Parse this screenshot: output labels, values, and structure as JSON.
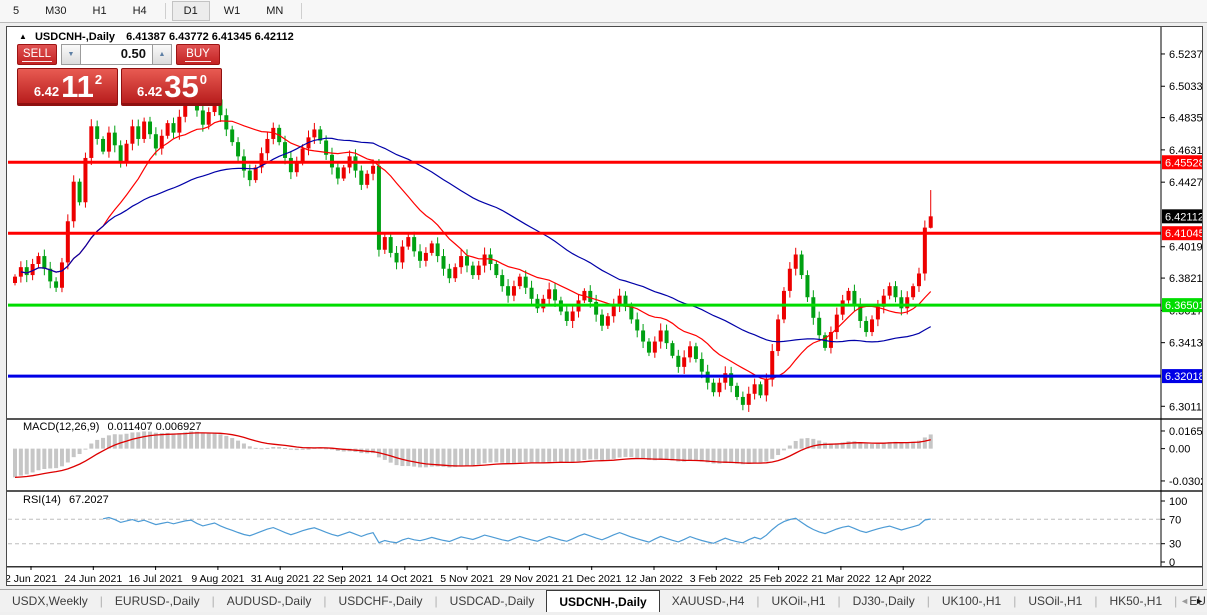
{
  "toolbar": {
    "timeframes": [
      {
        "label": "5",
        "active": false
      },
      {
        "label": "M30",
        "active": false
      },
      {
        "label": "H1",
        "active": false
      },
      {
        "label": "H4",
        "active": false
      },
      {
        "label": "|",
        "active": false
      },
      {
        "label": "D1",
        "active": true
      },
      {
        "label": "W1",
        "active": false
      },
      {
        "label": "MN",
        "active": false
      },
      {
        "label": "|",
        "active": false
      }
    ]
  },
  "chart": {
    "title_symbol": "USDCNH-,Daily",
    "title_ohlc": "6.41387 6.43772 6.41345 6.42112",
    "one_click": {
      "sell_label": "SELL",
      "buy_label": "BUY",
      "lot_value": "0.50",
      "spin_down": "▼",
      "spin_up": "▲",
      "sell_price_small": "6.42",
      "sell_price_big": "11",
      "sell_price_sup": "2",
      "buy_price_small": "6.42",
      "buy_price_big": "35",
      "buy_price_sup": "0"
    }
  },
  "indicators": {
    "macd_label": "MACD(12,26,9)",
    "macd_values": "0.011407 0.006927",
    "rsi_label": "RSI(14)",
    "rsi_value": "67.2027"
  },
  "chart_data": {
    "type": "candlestick",
    "symbol": "USDCNH-,Daily",
    "title": "USDCNH-,Daily 6.41387 6.43772 6.41345 6.42112",
    "last_candle": {
      "open": 6.41387,
      "high": 6.43772,
      "low": 6.41345,
      "close": 6.42112
    },
    "closes": [
      6.383,
      6.389,
      6.384,
      6.391,
      6.396,
      6.388,
      6.38,
      6.376,
      6.392,
      6.418,
      6.443,
      6.43,
      6.458,
      6.478,
      6.47,
      6.462,
      6.474,
      6.466,
      6.455,
      6.467,
      6.478,
      6.47,
      6.481,
      6.473,
      6.464,
      6.472,
      6.48,
      6.474,
      6.484,
      6.493,
      6.499,
      6.488,
      6.479,
      6.487,
      6.495,
      6.485,
      6.476,
      6.468,
      6.459,
      6.45,
      6.444,
      6.452,
      6.461,
      6.47,
      6.477,
      6.468,
      6.458,
      6.449,
      6.456,
      6.464,
      6.471,
      6.476,
      6.469,
      6.46,
      6.452,
      6.445,
      6.452,
      6.459,
      6.45,
      6.441,
      6.448,
      6.453,
      6.4,
      6.408,
      6.398,
      6.392,
      6.402,
      6.408,
      6.399,
      6.393,
      6.398,
      6.404,
      6.396,
      6.388,
      6.382,
      6.389,
      6.396,
      6.39,
      6.384,
      6.39,
      6.397,
      6.391,
      6.384,
      6.377,
      6.371,
      6.377,
      6.383,
      6.376,
      6.369,
      6.363,
      6.369,
      6.375,
      6.368,
      6.361,
      6.355,
      6.361,
      6.368,
      6.374,
      6.367,
      6.359,
      6.352,
      6.358,
      6.365,
      6.371,
      6.364,
      6.356,
      6.349,
      6.342,
      6.335,
      6.342,
      6.349,
      6.341,
      6.333,
      6.326,
      6.332,
      6.339,
      6.331,
      6.323,
      6.316,
      6.31,
      6.316,
      6.322,
      6.314,
      6.307,
      6.302,
      6.309,
      6.315,
      6.308,
      6.318,
      6.336,
      6.356,
      6.374,
      6.388,
      6.397,
      6.384,
      6.37,
      6.357,
      6.346,
      6.338,
      6.348,
      6.359,
      6.368,
      6.374,
      6.365,
      6.355,
      6.348,
      6.356,
      6.364,
      6.371,
      6.377,
      6.37,
      6.363,
      6.37,
      6.377,
      6.385,
      6.414,
      6.42112
    ],
    "price_axis": {
      "min": 6.2937,
      "max": 6.5401,
      "ticks": [
        "6.52370",
        "6.50330",
        "6.48350",
        "6.46310",
        "6.44270",
        "6.40190",
        "6.38210",
        "6.36170",
        "6.34130",
        "6.30110"
      ]
    },
    "hlines": [
      {
        "price": 6.45528,
        "label": "6.45528",
        "color": "#ff0000",
        "width": 3
      },
      {
        "price": 6.41045,
        "label": "6.41045",
        "color": "#ff0000",
        "width": 3
      },
      {
        "price": 6.36501,
        "label": "6.36501",
        "color": "#00dd00",
        "width": 3
      },
      {
        "price": 6.32018,
        "label": "6.32018",
        "color": "#0000e6",
        "width": 3
      }
    ],
    "current_price": {
      "price": 6.42112,
      "label": "6.42112",
      "badge_color": "#000000"
    },
    "macd": {
      "params": "12,26,9",
      "main": 0.011407,
      "signal": 0.006927,
      "axis_ticks": [
        {
          "label": "0.01653",
          "value": 0.01653
        },
        {
          "label": "0.00",
          "value": 0.0
        },
        {
          "label": "-0.03023",
          "value": -0.03023
        }
      ],
      "range": [
        -0.0387,
        0.0268
      ]
    },
    "rsi": {
      "period": 14,
      "value": 67.2027,
      "levels": [
        70,
        30
      ],
      "axis_ticks": [
        {
          "label": "100",
          "value": 100
        },
        {
          "label": "70",
          "value": 70
        },
        {
          "label": "30",
          "value": 30
        },
        {
          "label": "0",
          "value": 0
        }
      ]
    },
    "x_labels": [
      "2 Jun 2021",
      "24 Jun 2021",
      "16 Jul 2021",
      "9 Aug 2021",
      "31 Aug 2021",
      "22 Sep 2021",
      "14 Oct 2021",
      "5 Nov 2021",
      "29 Nov 2021",
      "21 Dec 2021",
      "12 Jan 2022",
      "3 Feb 2022",
      "25 Feb 2022",
      "21 Mar 2022",
      "12 Apr 2022"
    ],
    "colors": {
      "up": "#ec0000",
      "down": "#00a012",
      "ma_fast": "#ff0000",
      "ma_slow": "#0000a8",
      "macd_hist": "#c6c6c6",
      "macd_signal": "#dd0000",
      "rsi_line": "#4d9bd5",
      "level_dash": "#bdbdbd"
    }
  },
  "bottom_tabs": {
    "tabs": [
      {
        "label": "USDX,Weekly",
        "active": false
      },
      {
        "label": "EURUSD-,Daily",
        "active": false
      },
      {
        "label": "AUDUSD-,Daily",
        "active": false
      },
      {
        "label": "USDCHF-,Daily",
        "active": false
      },
      {
        "label": "USDCAD-,Daily",
        "active": false
      },
      {
        "label": "USDCNH-,Daily",
        "active": true
      },
      {
        "label": "XAUUSD-,H4",
        "active": false
      },
      {
        "label": "UKOil-,H1",
        "active": false
      },
      {
        "label": "DJ30-,Daily",
        "active": false
      },
      {
        "label": "UK100-,H1",
        "active": false
      },
      {
        "label": "USOil-,H1",
        "active": false
      },
      {
        "label": "HK50-,H1",
        "active": false
      },
      {
        "label": "EU",
        "active": false
      }
    ],
    "scroll_left": "◄",
    "scroll_right": "►"
  }
}
